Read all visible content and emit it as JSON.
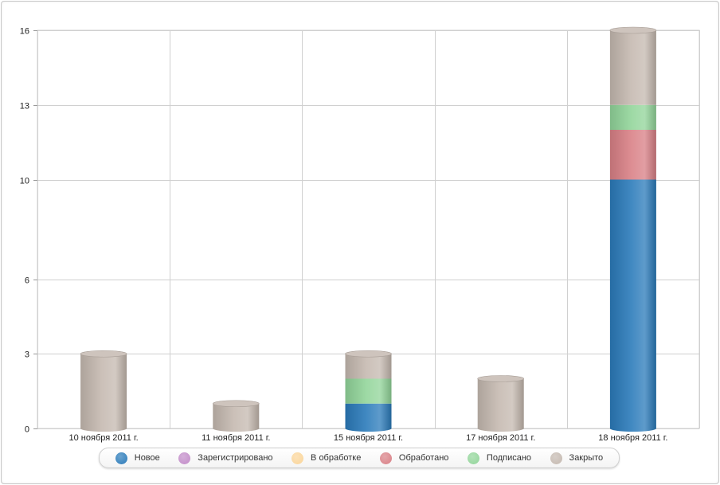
{
  "chart_data": {
    "type": "bar",
    "stacked": true,
    "categories": [
      "10 ноября 2011 г.",
      "11 ноября 2011 г.",
      "15 ноября 2011 г.",
      "17 ноября 2011 г.",
      "18 ноября 2011 г."
    ],
    "series": [
      {
        "name": "Новое",
        "color": "#2b7bba",
        "values": [
          0,
          0,
          1,
          0,
          10
        ]
      },
      {
        "name": "Зарегистрировано",
        "color": "#c28bc8",
        "values": [
          0,
          0,
          0,
          0,
          0
        ]
      },
      {
        "name": "В обработке",
        "color": "#fad59a",
        "values": [
          0,
          0,
          0,
          0,
          0
        ]
      },
      {
        "name": "Обработано",
        "color": "#d98086",
        "values": [
          0,
          0,
          0,
          0,
          2
        ]
      },
      {
        "name": "Подписано",
        "color": "#92d59a",
        "values": [
          0,
          0,
          1,
          0,
          1
        ]
      },
      {
        "name": "Закрыто",
        "color": "#c5b9b0",
        "values": [
          3,
          1,
          1,
          2,
          3
        ]
      }
    ],
    "y_ticks": [
      "0",
      "3",
      "6",
      "10",
      "13",
      "16"
    ],
    "ylim": [
      0,
      16
    ],
    "grid": true,
    "legend_position": "bottom"
  }
}
